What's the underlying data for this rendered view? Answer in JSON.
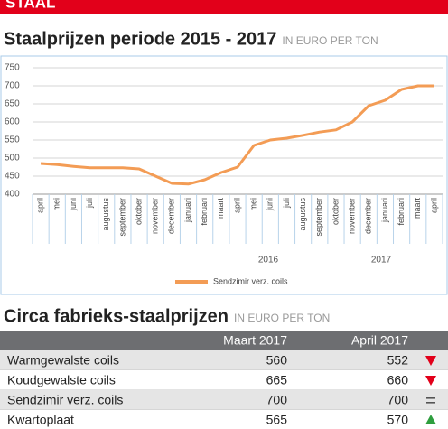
{
  "header": {
    "section": "STAAL"
  },
  "chart_data": {
    "type": "line",
    "title": "Staalprijzen periode 2015 - 2017",
    "subtitle": "IN EURO PER TON",
    "categories": [
      "april",
      "mei",
      "juni",
      "juli",
      "augustus",
      "september",
      "oktober",
      "november",
      "december",
      "januari",
      "februari",
      "maart",
      "april",
      "mei",
      "juni",
      "juli",
      "augustus",
      "september",
      "oktober",
      "november",
      "december",
      "januari",
      "februari",
      "maart",
      "april"
    ],
    "year_labels": [
      "2016",
      "2017"
    ],
    "series": [
      {
        "name": "Sendzimir verz. coils",
        "color": "#f39c55",
        "values": [
          485,
          482,
          477,
          473,
          473,
          473,
          470,
          450,
          430,
          428,
          440,
          460,
          475,
          535,
          550,
          555,
          563,
          572,
          578,
          600,
          645,
          660,
          690,
          700,
          700
        ]
      }
    ],
    "ylim": [
      400,
      750
    ],
    "yticks": [
      400,
      450,
      500,
      550,
      600,
      650,
      700,
      750
    ],
    "grid": true,
    "legend": "bottom"
  },
  "table": {
    "title": "Circa fabrieks-staalprijzen",
    "subtitle": "IN EURO PER TON",
    "columns": [
      "Maart 2017",
      "April 2017"
    ],
    "rows": [
      [
        "Warmgewalste coils",
        560,
        552
      ],
      [
        "Koudgewalste coils",
        665,
        660
      ],
      [
        "Sendzimir verz. coils",
        700,
        700
      ],
      [
        "Kwartoplaat",
        565,
        570
      ]
    ]
  }
}
